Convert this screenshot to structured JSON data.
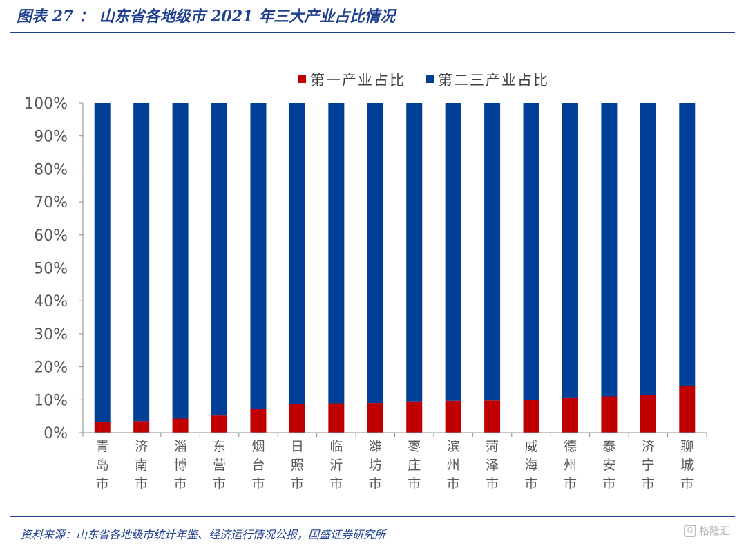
{
  "page": {
    "figure_title": "图表 27 ： 山东省各地级市 2021 年三大产业占比情况",
    "source": "资料来源：山东省各地级市统计年鉴、经济运行情况公报，国盛证券研究所",
    "watermark": "格隆汇"
  },
  "colors": {
    "primary_sector": "#c00000",
    "secondary_tertiary_sector": "#003f98",
    "title": "#1f3f8f",
    "axis_text": "#595959"
  },
  "chart_data": {
    "type": "bar",
    "stacked": true,
    "categories": [
      "青岛市",
      "济南市",
      "淄博市",
      "东营市",
      "烟台市",
      "日照市",
      "临沂市",
      "潍坊市",
      "枣庄市",
      "滨州市",
      "菏泽市",
      "威海市",
      "德州市",
      "泰安市",
      "济宁市",
      "聊城市"
    ],
    "series": [
      {
        "name": "第一产业占比",
        "color": "#c00000",
        "values": [
          3.3,
          3.5,
          4.3,
          5.2,
          7.3,
          8.8,
          8.9,
          9.0,
          9.5,
          9.7,
          9.8,
          10.0,
          10.5,
          11.0,
          11.5,
          14.2
        ]
      },
      {
        "name": "第二三产业占比",
        "color": "#003f98",
        "values": [
          96.7,
          96.5,
          95.7,
          94.8,
          92.7,
          91.2,
          91.1,
          91.0,
          90.5,
          90.3,
          90.2,
          90.0,
          89.5,
          89.0,
          88.5,
          85.8
        ]
      }
    ],
    "ylim": [
      0,
      100
    ],
    "yticks": [
      "0%",
      "10%",
      "20%",
      "30%",
      "40%",
      "50%",
      "60%",
      "70%",
      "80%",
      "90%",
      "100%"
    ],
    "legend_position": "top-center",
    "grid": false
  }
}
